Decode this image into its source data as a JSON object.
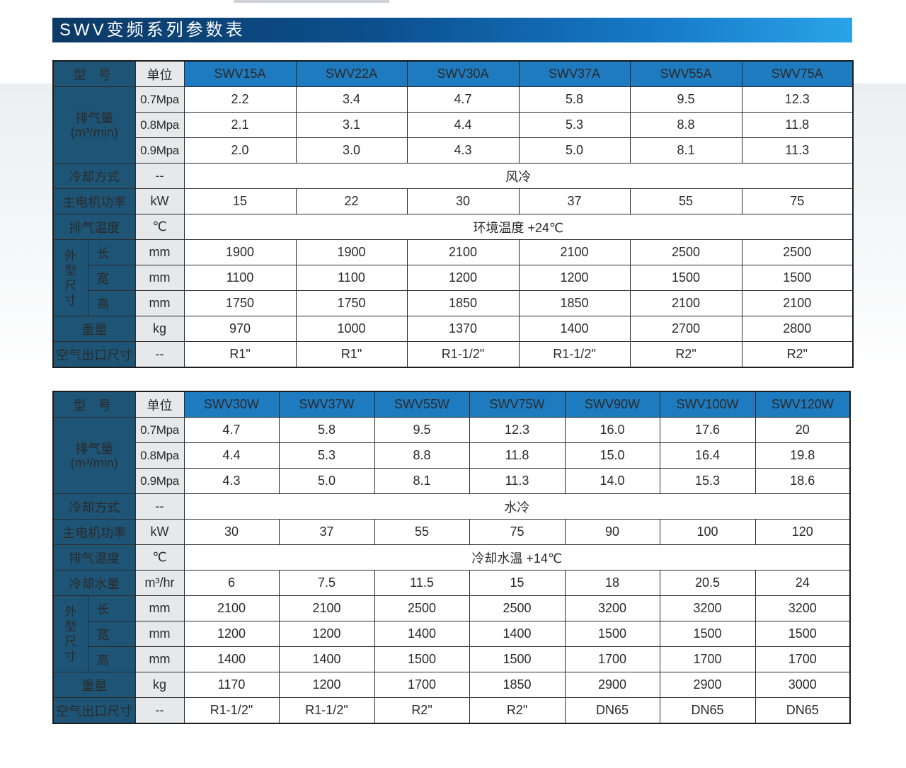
{
  "title": "SWV变频系列参数表",
  "table1": {
    "header": {
      "model_label": "型 号",
      "unit_label": "单位"
    },
    "models": [
      "SWV15A",
      "SWV22A",
      "SWV30A",
      "SWV37A",
      "SWV55A",
      "SWV75A"
    ],
    "air_delivery": {
      "label_line1": "排气量",
      "label_line2": "(m³/min)",
      "rows": [
        {
          "pressure": "0.7Mpa",
          "values": [
            "2.2",
            "3.4",
            "4.7",
            "5.8",
            "9.5",
            "12.3"
          ]
        },
        {
          "pressure": "0.8Mpa",
          "values": [
            "2.1",
            "3.1",
            "4.4",
            "5.3",
            "8.8",
            "11.8"
          ]
        },
        {
          "pressure": "0.9Mpa",
          "values": [
            "2.0",
            "3.0",
            "4.3",
            "5.0",
            "8.1",
            "11.3"
          ]
        }
      ]
    },
    "cooling": {
      "label": "冷却方式",
      "unit": "--",
      "value": "风冷"
    },
    "motor": {
      "label": "主电机功率",
      "unit": "kW",
      "values": [
        "15",
        "22",
        "30",
        "37",
        "55",
        "75"
      ]
    },
    "temp": {
      "label": "排气温度",
      "unit": "℃",
      "value": "环境温度 +24℃"
    },
    "dimensions": {
      "label_chars": [
        "外",
        "型",
        "尺",
        "寸"
      ],
      "rows": [
        {
          "sub": "长",
          "unit": "mm",
          "values": [
            "1900",
            "1900",
            "2100",
            "2100",
            "2500",
            "2500"
          ]
        },
        {
          "sub": "宽",
          "unit": "mm",
          "values": [
            "1100",
            "1100",
            "1200",
            "1200",
            "1500",
            "1500"
          ]
        },
        {
          "sub": "高",
          "unit": "mm",
          "values": [
            "1750",
            "1750",
            "1850",
            "1850",
            "2100",
            "2100"
          ]
        }
      ]
    },
    "weight": {
      "label": "重量",
      "unit": "kg",
      "values": [
        "970",
        "1000",
        "1370",
        "1400",
        "2700",
        "2800"
      ]
    },
    "outlet": {
      "label": "空气出口尺寸",
      "unit": "--",
      "values": [
        "R1\"",
        "R1\"",
        "R1-1/2\"",
        "R1-1/2\"",
        "R2\"",
        "R2\""
      ]
    }
  },
  "table2": {
    "header": {
      "model_label": "型 号",
      "unit_label": "单位"
    },
    "models": [
      "SWV30W",
      "SWV37W",
      "SWV55W",
      "SWV75W",
      "SWV90W",
      "SWV100W",
      "SWV120W"
    ],
    "air_delivery": {
      "label_line1": "排气量",
      "label_line2": "(m³/min)",
      "rows": [
        {
          "pressure": "0.7Mpa",
          "values": [
            "4.7",
            "5.8",
            "9.5",
            "12.3",
            "16.0",
            "17.6",
            "20"
          ]
        },
        {
          "pressure": "0.8Mpa",
          "values": [
            "4.4",
            "5.3",
            "8.8",
            "11.8",
            "15.0",
            "16.4",
            "19.8"
          ]
        },
        {
          "pressure": "0.9Mpa",
          "values": [
            "4.3",
            "5.0",
            "8.1",
            "11.3",
            "14.0",
            "15.3",
            "18.6"
          ]
        }
      ]
    },
    "cooling": {
      "label": "冷却方式",
      "unit": "--",
      "value": "水冷"
    },
    "motor": {
      "label": "主电机功率",
      "unit": "kW",
      "values": [
        "30",
        "37",
        "55",
        "75",
        "90",
        "100",
        "120"
      ]
    },
    "temp": {
      "label": "排气温度",
      "unit": "℃",
      "value": "冷却水温 +14℃"
    },
    "water": {
      "label": "冷却水量",
      "unit": "m³/hr",
      "values": [
        "6",
        "7.5",
        "11.5",
        "15",
        "18",
        "20.5",
        "24"
      ]
    },
    "dimensions": {
      "label_chars": [
        "外",
        "型",
        "尺",
        "寸"
      ],
      "rows": [
        {
          "sub": "长",
          "unit": "mm",
          "values": [
            "2100",
            "2100",
            "2500",
            "2500",
            "3200",
            "3200",
            "3200"
          ]
        },
        {
          "sub": "宽",
          "unit": "mm",
          "values": [
            "1200",
            "1200",
            "1400",
            "1400",
            "1500",
            "1500",
            "1500"
          ]
        },
        {
          "sub": "高",
          "unit": "mm",
          "values": [
            "1400",
            "1400",
            "1500",
            "1500",
            "1700",
            "1700",
            "1700"
          ]
        }
      ]
    },
    "weight": {
      "label": "重量",
      "unit": "kg",
      "values": [
        "1170",
        "1200",
        "1700",
        "1850",
        "2900",
        "2900",
        "3000"
      ]
    },
    "outlet": {
      "label": "空气出口尺寸",
      "unit": "--",
      "values": [
        "R1-1/2\"",
        "R1-1/2\"",
        "R2\"",
        "R2\"",
        "DN65",
        "DN65",
        "DN65"
      ]
    }
  }
}
